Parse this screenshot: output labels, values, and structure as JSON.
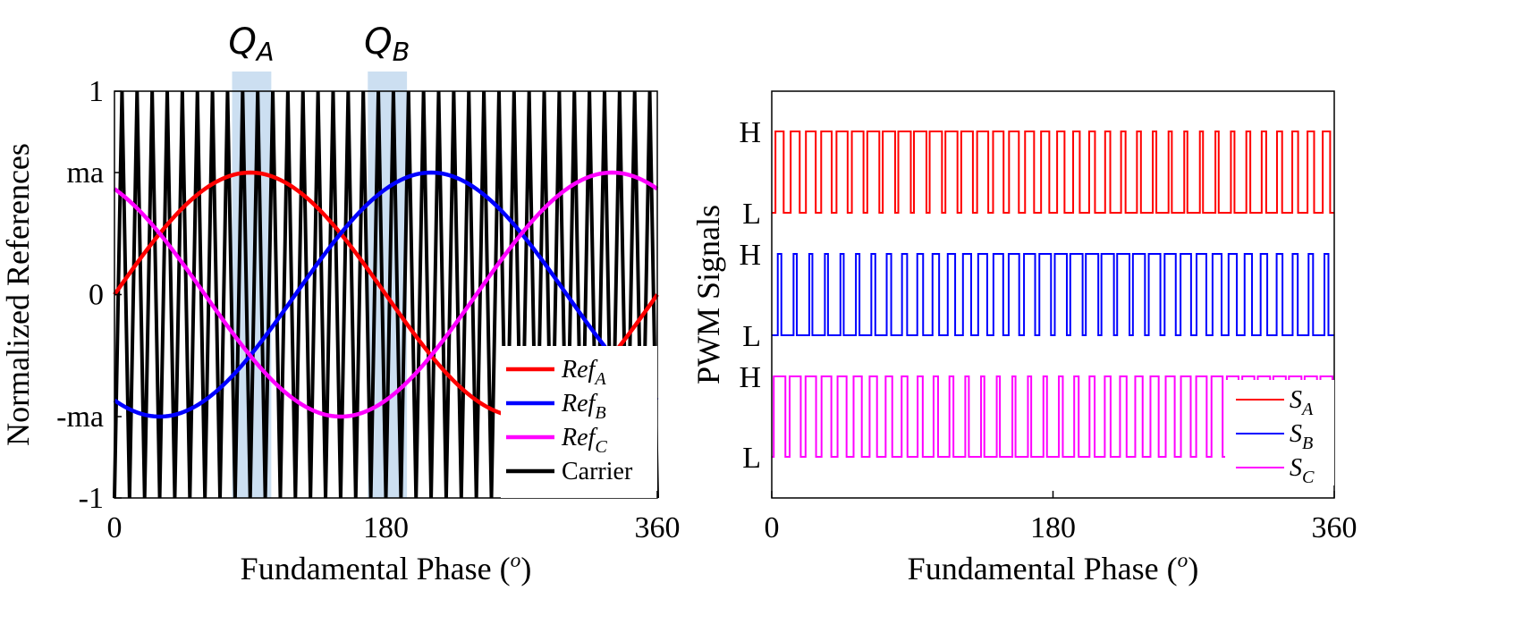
{
  "chart_data": [
    {
      "type": "line",
      "xlabel": "Fundamental Phase (o)",
      "ylabel": "Normalized References",
      "xlim": [
        0,
        360
      ],
      "ylim": [
        -1,
        1
      ],
      "x_ticks": [
        {
          "value": 0,
          "label": "0"
        },
        {
          "value": 180,
          "label": "180"
        },
        {
          "value": 360,
          "label": "360"
        }
      ],
      "y_ticks": [
        {
          "value": 1,
          "label": "1"
        },
        {
          "value": 0.6,
          "label": "ma"
        },
        {
          "value": 0,
          "label": "0"
        },
        {
          "value": -0.6,
          "label": "-ma"
        },
        {
          "value": -1,
          "label": "-1"
        }
      ],
      "modulation_index": 0.6,
      "carrier_cycles": 36,
      "series": [
        {
          "name": "Ref_A",
          "color": "#ff0000",
          "phase_deg": 0
        },
        {
          "name": "Ref_B",
          "color": "#0000ff",
          "phase_deg": -120
        },
        {
          "name": "Ref_C",
          "color": "#ff00ff",
          "phase_deg": 120
        },
        {
          "name": "Carrier",
          "color": "#000000"
        }
      ],
      "highlights": [
        {
          "label_main": "Q",
          "label_sub": "A",
          "x_range": [
            78,
            104
          ],
          "color": "#c6dbef"
        },
        {
          "label_main": "Q",
          "label_sub": "B",
          "x_range": [
            168,
            194
          ],
          "color": "#c6dbef"
        }
      ],
      "legend": {
        "placement": "bottom-right",
        "entries": [
          {
            "main": "Ref",
            "sub": "A",
            "color": "#ff0000"
          },
          {
            "main": "Ref",
            "sub": "B",
            "color": "#0000ff"
          },
          {
            "main": "Ref",
            "sub": "C",
            "color": "#ff00ff"
          },
          {
            "main": "Carrier",
            "sub": "",
            "color": "#000000"
          }
        ]
      }
    },
    {
      "type": "line",
      "xlabel": "Fundamental Phase (o)",
      "ylabel": "PWM Signals",
      "xlim": [
        0,
        360
      ],
      "x_ticks": [
        {
          "value": 0,
          "label": "0"
        },
        {
          "value": 180,
          "label": "180"
        },
        {
          "value": 360,
          "label": "360"
        }
      ],
      "level_labels": {
        "high": "H",
        "low": "L"
      },
      "pulses_per_cycle": 36,
      "series": [
        {
          "name": "S_A",
          "color": "#ff0000",
          "phase_deg": 0
        },
        {
          "name": "S_B",
          "color": "#0000ff",
          "phase_deg": -120
        },
        {
          "name": "S_C",
          "color": "#ff00ff",
          "phase_deg": 120
        }
      ],
      "legend": {
        "placement": "bottom-right",
        "entries": [
          {
            "main": "S",
            "sub": "A",
            "color": "#ff0000"
          },
          {
            "main": "S",
            "sub": "B",
            "color": "#0000ff"
          },
          {
            "main": "S",
            "sub": "C",
            "color": "#ff00ff"
          }
        ]
      }
    }
  ]
}
